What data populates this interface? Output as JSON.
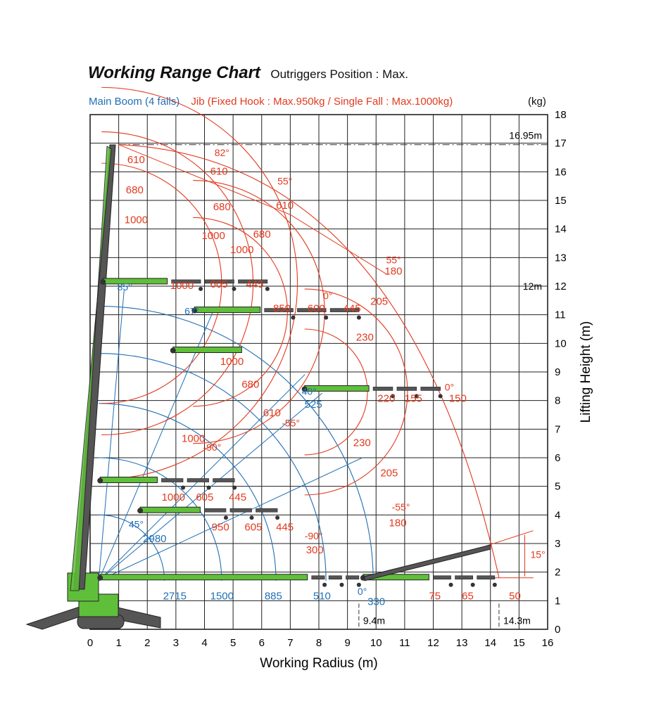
{
  "header": {
    "title": "Working Range Chart",
    "subtitle": "Outriggers Position : Max.",
    "legend_main": "Main Boom (4 falls)",
    "legend_jib": "Jib (Fixed Hook : Max.950kg / Single Fall : Max.1000kg)",
    "unit": "(kg)"
  },
  "colors": {
    "main_boom": "#1f6fb5",
    "jib": "#e23a1e",
    "crane": "#5fbf3a",
    "boom_dark": "#555555",
    "grid": "#222222"
  },
  "chart_data": {
    "type": "scatter",
    "title": "Working Range Chart",
    "xlabel": "Working Radius (m)",
    "ylabel": "Lifting Height (m)",
    "xlim": [
      0,
      16
    ],
    "ylim": [
      0,
      18
    ],
    "x_ticks": [
      "0",
      "1",
      "2",
      "3",
      "4",
      "5",
      "6",
      "7",
      "8",
      "9",
      "10",
      "11",
      "12",
      "13",
      "14",
      "15",
      "16"
    ],
    "y_ticks": [
      "0",
      "1",
      "2",
      "3",
      "4",
      "5",
      "6",
      "7",
      "8",
      "9",
      "10",
      "11",
      "12",
      "13",
      "14",
      "15",
      "16",
      "17",
      "18"
    ],
    "grid": true,
    "boom_pivot": [
      0.3,
      1.7
    ],
    "reference_lines": [
      {
        "label": "16.95m",
        "y": 16.95
      },
      {
        "label": "12m",
        "y": 12
      }
    ],
    "radius_markers": [
      {
        "label": "9.4m",
        "x": 9.4
      },
      {
        "label": "14.3m",
        "x": 14.3
      }
    ],
    "angle_marker": {
      "label": "15°"
    },
    "main_boom_arcs_radius_m": [
      2.3,
      4.3,
      6.2,
      7.95,
      9.6
    ],
    "main_boom_angles": [
      {
        "label": "85°",
        "x": 0.95,
        "y": 11.85
      },
      {
        "label": "67°",
        "x": 3.3,
        "y": 11.0
      },
      {
        "label": "40°",
        "x": 7.4,
        "y": 8.2
      },
      {
        "label": "45°",
        "x": 1.35,
        "y": 3.55
      },
      {
        "label": "0°",
        "x": 9.35,
        "y": 1.2
      }
    ],
    "main_boom_loads": [
      {
        "label": "2715",
        "x": 2.55,
        "y": 1.05
      },
      {
        "label": "1500",
        "x": 4.2,
        "y": 1.05
      },
      {
        "label": "885",
        "x": 6.1,
        "y": 1.05
      },
      {
        "label": "510",
        "x": 7.8,
        "y": 1.05
      },
      {
        "label": "330",
        "x": 9.7,
        "y": 0.85
      },
      {
        "label": "2980",
        "x": 1.85,
        "y": 3.05
      },
      {
        "label": "525",
        "x": 7.5,
        "y": 7.75
      }
    ],
    "jib_angles": [
      {
        "label": "82°",
        "x": 4.35,
        "y": 16.55
      },
      {
        "label": "55°",
        "x": 6.55,
        "y": 15.55
      },
      {
        "label": "55°",
        "x": 10.35,
        "y": 12.8
      },
      {
        "label": "0°",
        "x": 8.15,
        "y": 11.55
      },
      {
        "label": "0°",
        "x": 12.4,
        "y": 8.35
      },
      {
        "label": "-55°",
        "x": 6.7,
        "y": 7.1
      },
      {
        "label": "-90°",
        "x": 3.95,
        "y": 6.25
      },
      {
        "label": "-55°",
        "x": 10.55,
        "y": 4.15
      },
      {
        "label": "-90°",
        "x": 7.5,
        "y": 3.15
      }
    ],
    "jib_loads": [
      {
        "label": "610",
        "x": 1.3,
        "y": 16.3
      },
      {
        "label": "680",
        "x": 1.25,
        "y": 15.25
      },
      {
        "label": "1000",
        "x": 1.2,
        "y": 14.2
      },
      {
        "label": "610",
        "x": 4.2,
        "y": 15.9
      },
      {
        "label": "680",
        "x": 4.3,
        "y": 14.65
      },
      {
        "label": "1000",
        "x": 3.9,
        "y": 13.65
      },
      {
        "label": "610",
        "x": 6.5,
        "y": 14.7
      },
      {
        "label": "680",
        "x": 5.7,
        "y": 13.7
      },
      {
        "label": "1000",
        "x": 4.9,
        "y": 13.15
      },
      {
        "label": "1000",
        "x": 2.8,
        "y": 11.9
      },
      {
        "label": "605",
        "x": 4.2,
        "y": 11.95
      },
      {
        "label": "445",
        "x": 5.45,
        "y": 11.95
      },
      {
        "label": "850",
        "x": 6.4,
        "y": 11.1
      },
      {
        "label": "600",
        "x": 7.6,
        "y": 11.1
      },
      {
        "label": "445",
        "x": 8.85,
        "y": 11.1
      },
      {
        "label": "180",
        "x": 10.3,
        "y": 12.4
      },
      {
        "label": "205",
        "x": 9.8,
        "y": 11.35
      },
      {
        "label": "230",
        "x": 9.3,
        "y": 10.1
      },
      {
        "label": "1000",
        "x": 4.55,
        "y": 9.25
      },
      {
        "label": "680",
        "x": 5.3,
        "y": 8.45
      },
      {
        "label": "610",
        "x": 6.05,
        "y": 7.45
      },
      {
        "label": "1000",
        "x": 3.2,
        "y": 6.55
      },
      {
        "label": "220",
        "x": 10.05,
        "y": 7.95
      },
      {
        "label": "155",
        "x": 11.0,
        "y": 7.95
      },
      {
        "label": "150",
        "x": 12.55,
        "y": 7.95
      },
      {
        "label": "230",
        "x": 9.2,
        "y": 6.4
      },
      {
        "label": "205",
        "x": 10.15,
        "y": 5.35
      },
      {
        "label": "180",
        "x": 10.45,
        "y": 3.6
      },
      {
        "label": "1000",
        "x": 2.5,
        "y": 4.5
      },
      {
        "label": "605",
        "x": 3.7,
        "y": 4.5
      },
      {
        "label": "445",
        "x": 4.85,
        "y": 4.5
      },
      {
        "label": "950",
        "x": 4.25,
        "y": 3.45
      },
      {
        "label": "605",
        "x": 5.4,
        "y": 3.45
      },
      {
        "label": "445",
        "x": 6.5,
        "y": 3.45
      },
      {
        "label": "300",
        "x": 7.55,
        "y": 2.65
      },
      {
        "label": "75",
        "x": 11.85,
        "y": 1.05
      },
      {
        "label": "65",
        "x": 13.0,
        "y": 1.05
      },
      {
        "label": "50",
        "x": 14.65,
        "y": 1.05
      }
    ],
    "boom_configs": [
      {
        "base": [
          0.45,
          12.15
        ],
        "main_end": [
          2.7,
          12.15
        ],
        "jib_len": 3.5
      },
      {
        "base": [
          3.65,
          11.15
        ],
        "main_end": [
          5.95,
          11.15
        ],
        "jib_len": 3.45
      },
      {
        "base": [
          2.9,
          9.75
        ],
        "main_end": [
          5.3,
          9.75
        ],
        "jib_len": 0
      },
      {
        "base": [
          7.5,
          8.4
        ],
        "main_end": [
          9.75,
          8.4
        ],
        "jib_len": 2.5
      },
      {
        "base": [
          0.35,
          5.2
        ],
        "main_end": [
          2.35,
          5.2
        ],
        "jib_len": 2.7
      },
      {
        "base": [
          1.75,
          4.15
        ],
        "main_end": [
          3.85,
          4.15
        ],
        "jib_len": 2.7
      },
      {
        "base": [
          0.35,
          1.8
        ],
        "main_end": [
          7.6,
          1.8
        ],
        "jib_len": 1.8
      },
      {
        "base": [
          9.55,
          1.8
        ],
        "main_end": [
          11.85,
          1.8
        ],
        "jib_len": 2.3
      }
    ]
  }
}
